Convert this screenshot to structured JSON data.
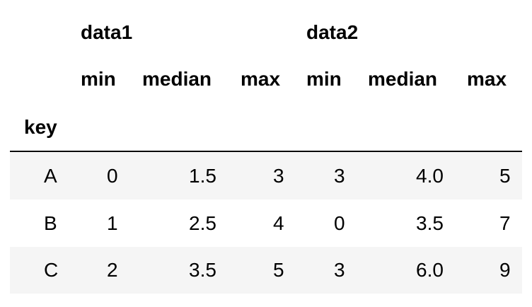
{
  "table": {
    "top_headers": {
      "group1": "data1",
      "group2": "data2"
    },
    "sub_headers": [
      "min",
      "median",
      "max",
      "min",
      "median",
      "max"
    ],
    "index_name": "key",
    "rows": [
      {
        "key": "A",
        "cells": [
          "0",
          "1.5",
          "3",
          "3",
          "4.0",
          "5"
        ]
      },
      {
        "key": "B",
        "cells": [
          "1",
          "2.5",
          "4",
          "0",
          "3.5",
          "7"
        ]
      },
      {
        "key": "C",
        "cells": [
          "2",
          "3.5",
          "5",
          "3",
          "6.0",
          "9"
        ]
      }
    ],
    "colors": {
      "stripe": "#f5f5f5",
      "rule": "#000000"
    }
  }
}
